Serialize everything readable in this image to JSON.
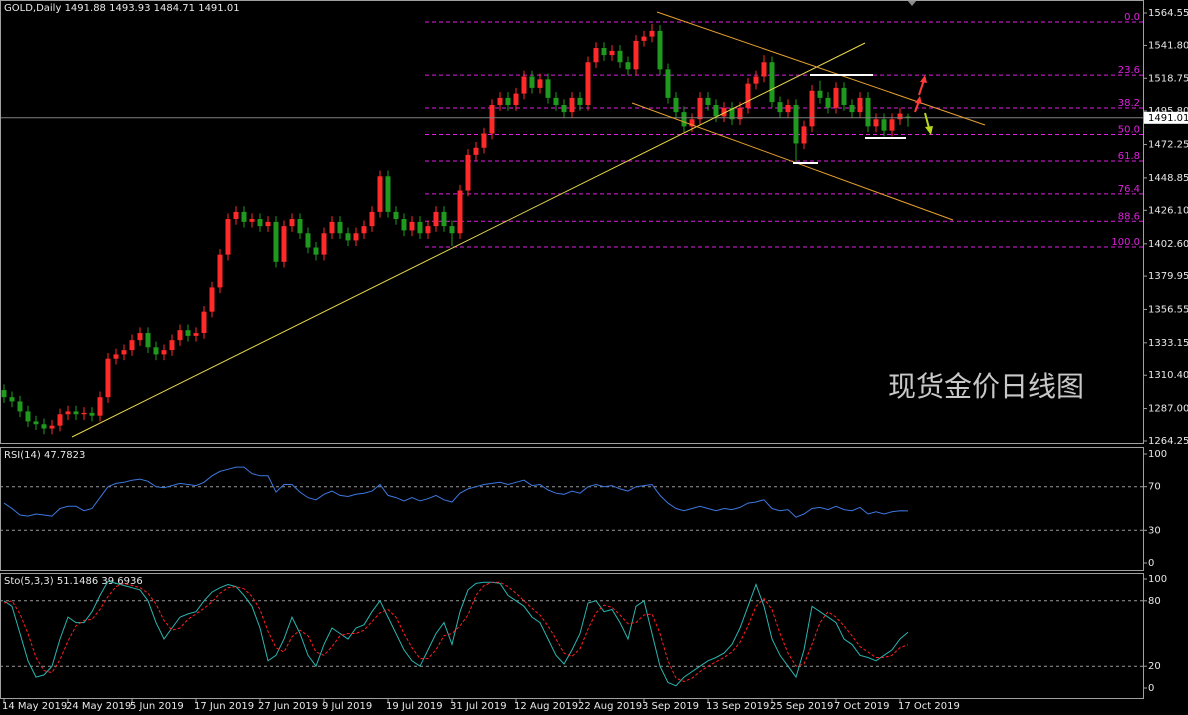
{
  "chart_data": [
    {
      "type": "candlestick",
      "title": "GOLD,Daily",
      "watermark": "现货金价日线图",
      "up_color": "#ff2a2a",
      "down_color": "#1f9a1f",
      "grid": false,
      "xlim": [
        -0.5,
        142.375
      ],
      "xticks": [
        {
          "value": 0,
          "label": "14 May 2019"
        },
        {
          "value": 8,
          "label": "24 May 2019"
        },
        {
          "value": 16,
          "label": "5 Jun 2019"
        },
        {
          "value": 24,
          "label": "17 Jun 2019"
        },
        {
          "value": 32,
          "label": "27 Jun 2019"
        },
        {
          "value": 40,
          "label": "9 Jul 2019"
        },
        {
          "value": 48,
          "label": "19 Jul 2019"
        },
        {
          "value": 56,
          "label": "31 Jul 2019"
        },
        {
          "value": 64,
          "label": "12 Aug 2019"
        },
        {
          "value": 72,
          "label": "22 Aug 2019"
        },
        {
          "value": 80,
          "label": "3 Sep 2019"
        },
        {
          "value": 88,
          "label": "13 Sep 2019"
        },
        {
          "value": 96,
          "label": "25 Sep 2019"
        },
        {
          "value": 104,
          "label": "7 Oct 2019"
        },
        {
          "value": 112,
          "label": "17 Oct 2019"
        }
      ],
      "ylim": [
        1264.25,
        1564.55
      ],
      "yticks": [
        1564.55,
        {
          "value": 1541.8,
          "label": "1541.80"
        },
        1518.75,
        {
          "value": 1495.8,
          "label": "1495.80"
        },
        1472.25,
        1448.85,
        {
          "value": 1426.1,
          "label": "1426.10"
        },
        {
          "value": 1402.6,
          "label": "1402.60"
        },
        1379.95,
        1356.55,
        1333.15,
        {
          "value": 1310.4,
          "label": "1310.40"
        },
        {
          "value": 1287,
          "label": "1287.00"
        },
        1264.25
      ],
      "fib_levels": [
        {
          "label": "0.0",
          "price": 1558.2
        },
        {
          "label": "23.6",
          "price": 1521.0
        },
        {
          "label": "38.2",
          "price": 1497.9
        },
        {
          "label": "50.0",
          "price": 1479.3
        },
        {
          "label": "61.8",
          "price": 1460.7
        },
        {
          "label": "76.4",
          "price": 1437.6
        },
        {
          "label": "88.6",
          "price": 1418.4
        },
        {
          "label": "100.0",
          "price": 1400.4
        }
      ],
      "fib_color": "#e020e0",
      "open": [
        1300,
        1295,
        1292,
        1285,
        1278,
        1276,
        1273,
        1275,
        1283,
        1285,
        1283,
        1284,
        1282,
        1295,
        1322,
        1325,
        1328,
        1335,
        1340,
        1330,
        1325,
        1328,
        1335,
        1342,
        1338,
        1340,
        1355,
        1372,
        1395,
        1420,
        1425,
        1418,
        1420,
        1415,
        1418,
        1390,
        1415,
        1420,
        1410,
        1400,
        1395,
        1410,
        1418,
        1410,
        1405,
        1410,
        1415,
        1425,
        1450,
        1425,
        1420,
        1412,
        1418,
        1410,
        1415,
        1425,
        1415,
        1410,
        1440,
        1465,
        1470,
        1480,
        1500,
        1505,
        1500,
        1508,
        1520,
        1512,
        1518,
        1505,
        1500,
        1495,
        1505,
        1500,
        1530,
        1540,
        1535,
        1538,
        1530,
        1525,
        1545,
        1548,
        1552,
        1525,
        1505,
        1495,
        1485,
        1490,
        1505,
        1500,
        1492,
        1498,
        1490,
        1498,
        1515,
        1520,
        1530,
        1502,
        1495,
        1500,
        1473,
        1485,
        1510,
        1505,
        1498,
        1512,
        1500,
        1495,
        1505,
        1485,
        1490,
        1482,
        1490,
        1491.88
      ],
      "high": [
        1304,
        1299,
        1296,
        1289,
        1282,
        1280,
        1279,
        1287,
        1289,
        1289,
        1288,
        1288,
        1299,
        1326,
        1329,
        1332,
        1339,
        1344,
        1344,
        1334,
        1332,
        1339,
        1346,
        1346,
        1344,
        1359,
        1376,
        1399,
        1424,
        1429,
        1429,
        1424,
        1424,
        1422,
        1422,
        1419,
        1424,
        1424,
        1414,
        1404,
        1414,
        1422,
        1422,
        1414,
        1414,
        1419,
        1429,
        1454,
        1454,
        1429,
        1424,
        1422,
        1422,
        1419,
        1429,
        1429,
        1419,
        1444,
        1469,
        1474,
        1484,
        1504,
        1509,
        1509,
        1512,
        1524,
        1524,
        1522,
        1522,
        1509,
        1504,
        1509,
        1509,
        1534,
        1544,
        1544,
        1542,
        1542,
        1534,
        1549,
        1552,
        1557,
        1556,
        1529,
        1509,
        1499,
        1494,
        1509,
        1509,
        1504,
        1502,
        1502,
        1502,
        1519,
        1524,
        1535,
        1534,
        1506,
        1504,
        1504,
        1489,
        1514,
        1517,
        1509,
        1516,
        1516,
        1504,
        1509,
        1509,
        1494,
        1494,
        1494,
        1498,
        1493.93
      ],
      "low": [
        1291,
        1288,
        1281,
        1274,
        1272,
        1269,
        1269,
        1271,
        1279,
        1279,
        1279,
        1278,
        1278,
        1291,
        1318,
        1321,
        1324,
        1331,
        1326,
        1321,
        1321,
        1324,
        1331,
        1334,
        1334,
        1336,
        1351,
        1368,
        1391,
        1416,
        1414,
        1414,
        1411,
        1411,
        1386,
        1386,
        1411,
        1406,
        1396,
        1391,
        1391,
        1406,
        1406,
        1401,
        1401,
        1406,
        1411,
        1421,
        1421,
        1416,
        1408,
        1408,
        1406,
        1406,
        1411,
        1411,
        1401,
        1406,
        1436,
        1461,
        1466,
        1476,
        1496,
        1496,
        1496,
        1504,
        1508,
        1508,
        1501,
        1496,
        1491,
        1491,
        1496,
        1496,
        1526,
        1531,
        1531,
        1526,
        1521,
        1521,
        1541,
        1544,
        1521,
        1501,
        1491,
        1481,
        1481,
        1486,
        1496,
        1488,
        1488,
        1486,
        1486,
        1494,
        1511,
        1516,
        1498,
        1491,
        1491,
        1459,
        1469,
        1481,
        1501,
        1494,
        1494,
        1496,
        1491,
        1491,
        1481,
        1481,
        1478,
        1478,
        1486,
        1484.71
      ],
      "close": [
        1295,
        1292,
        1285,
        1278,
        1276,
        1273,
        1275,
        1283,
        1285,
        1283,
        1284,
        1282,
        1295,
        1322,
        1325,
        1328,
        1335,
        1340,
        1330,
        1325,
        1328,
        1335,
        1342,
        1338,
        1340,
        1355,
        1372,
        1395,
        1420,
        1425,
        1418,
        1420,
        1415,
        1418,
        1390,
        1415,
        1420,
        1410,
        1400,
        1395,
        1410,
        1418,
        1410,
        1405,
        1410,
        1415,
        1425,
        1450,
        1425,
        1420,
        1412,
        1418,
        1410,
        1415,
        1425,
        1415,
        1410,
        1440,
        1465,
        1470,
        1480,
        1500,
        1505,
        1500,
        1508,
        1520,
        1512,
        1518,
        1505,
        1500,
        1495,
        1505,
        1500,
        1530,
        1540,
        1535,
        1538,
        1530,
        1525,
        1545,
        1548,
        1552,
        1525,
        1505,
        1495,
        1485,
        1490,
        1505,
        1500,
        1492,
        1498,
        1490,
        1498,
        1515,
        1520,
        1530,
        1502,
        1495,
        1500,
        1473,
        1485,
        1510,
        1505,
        1498,
        1512,
        1500,
        1495,
        1505,
        1485,
        1490,
        1482,
        1490,
        1494,
        1491.01
      ]
    },
    {
      "type": "line",
      "title": "RSI(14)",
      "xlim": [
        -0.5,
        142.375
      ],
      "ylim": [
        0,
        100
      ],
      "yticks": [
        100,
        70,
        30,
        0
      ],
      "grid": true,
      "series": [
        {
          "color": "#3d78e0",
          "values": [
            55,
            50,
            44,
            43,
            45,
            44,
            43,
            50,
            52,
            52,
            48,
            50,
            60,
            70,
            73,
            74,
            76,
            77,
            75,
            70,
            69,
            71,
            73,
            72,
            71,
            74,
            80,
            84,
            86,
            88,
            88,
            82,
            80,
            80,
            65,
            72,
            72,
            65,
            60,
            58,
            63,
            66,
            62,
            61,
            63,
            64,
            66,
            72,
            62,
            60,
            57,
            60,
            57,
            59,
            62,
            58,
            56,
            64,
            68,
            70,
            72,
            73,
            74,
            72,
            74,
            76,
            71,
            72,
            67,
            64,
            63,
            66,
            64,
            70,
            72,
            70,
            71,
            68,
            66,
            70,
            71,
            72,
            62,
            55,
            50,
            48,
            50,
            52,
            50,
            48,
            50,
            49,
            51,
            55,
            56,
            58,
            50,
            48,
            49,
            42,
            45,
            50,
            51,
            49,
            52,
            49,
            48,
            51,
            45,
            47,
            45,
            47,
            48,
            47.7823
          ]
        }
      ]
    },
    {
      "type": "line",
      "title": "Sto(5,3,3)",
      "xlim": [
        -0.5,
        142.375
      ],
      "ylim": [
        0,
        100
      ],
      "yticks": [
        100,
        80,
        20,
        0
      ],
      "grid": true,
      "series": [
        {
          "color": "#2ab5b0",
          "values": [
            80,
            75,
            50,
            25,
            10,
            12,
            20,
            45,
            65,
            60,
            60,
            70,
            85,
            98,
            96,
            94,
            92,
            90,
            80,
            60,
            45,
            55,
            65,
            68,
            70,
            80,
            88,
            92,
            95,
            93,
            85,
            75,
            55,
            25,
            30,
            45,
            65,
            50,
            30,
            20,
            40,
            55,
            50,
            45,
            55,
            58,
            70,
            80,
            65,
            50,
            35,
            25,
            20,
            35,
            50,
            60,
            40,
            70,
            90,
            96,
            97,
            97,
            96,
            85,
            80,
            75,
            65,
            60,
            45,
            30,
            22,
            35,
            50,
            78,
            80,
            70,
            72,
            60,
            45,
            75,
            80,
            50,
            20,
            5,
            2,
            10,
            15,
            20,
            25,
            28,
            32,
            40,
            55,
            75,
            95,
            75,
            45,
            30,
            20,
            10,
            35,
            75,
            70,
            65,
            60,
            45,
            40,
            30,
            28,
            25,
            30,
            35,
            45,
            51.1486
          ]
        },
        {
          "color": "#ff2020",
          "dashed": true,
          "values": [
            78,
            80,
            68,
            50,
            28,
            16,
            14,
            26,
            43,
            57,
            62,
            63,
            72,
            84,
            93,
            96,
            94,
            92,
            87,
            77,
            62,
            53,
            55,
            63,
            68,
            73,
            79,
            87,
            92,
            93,
            91,
            84,
            72,
            52,
            37,
            33,
            47,
            53,
            48,
            33,
            30,
            38,
            48,
            50,
            50,
            53,
            61,
            69,
            72,
            65,
            50,
            37,
            27,
            27,
            35,
            48,
            50,
            57,
            67,
            85,
            94,
            97,
            97,
            93,
            87,
            80,
            73,
            67,
            57,
            45,
            32,
            29,
            36,
            54,
            69,
            76,
            74,
            67,
            59,
            60,
            67,
            68,
            50,
            25,
            9,
            6,
            9,
            15,
            20,
            24,
            28,
            33,
            42,
            57,
            75,
            82,
            72,
            50,
            32,
            20,
            22,
            40,
            60,
            70,
            65,
            57,
            48,
            38,
            33,
            28,
            28,
            30,
            37,
            39.6936
          ]
        }
      ]
    }
  ]
}
